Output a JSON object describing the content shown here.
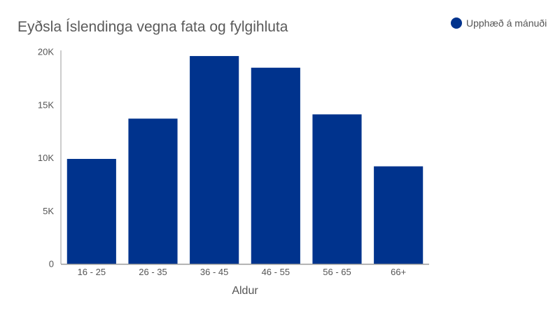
{
  "colors": {
    "bar": "#00338d",
    "axis": "#999999",
    "text": "#555555"
  },
  "chart_data": {
    "type": "bar",
    "title": "Eyðsla Íslendinga vegna fata og fylgihluta",
    "xlabel": "Aldur",
    "ylabel": "",
    "categories": [
      "16 - 25",
      "26 - 35",
      "36 - 45",
      "46 - 55",
      "56 - 65",
      "66+"
    ],
    "series": [
      {
        "name": "Upphæð á mánuði",
        "values": [
          9900,
          13700,
          19600,
          18500,
          14100,
          9200
        ]
      }
    ],
    "ylim": [
      0,
      20000
    ],
    "yticks": [
      0,
      5000,
      10000,
      15000,
      20000
    ],
    "ytick_labels": [
      "0",
      "5K",
      "10K",
      "15K",
      "20K"
    ],
    "grid": false,
    "legend_position": "top-right"
  }
}
